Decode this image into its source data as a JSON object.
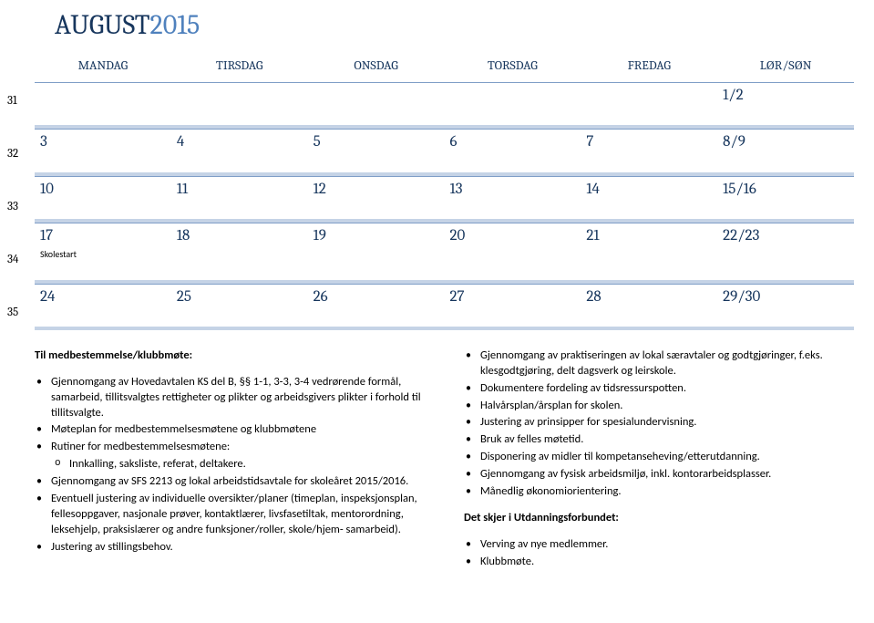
{
  "title": {
    "month": "AUGUST",
    "year": "2015"
  },
  "weekdays": [
    "MANDAG",
    "TIRSDAG",
    "ONSDAG",
    "TORSDAG",
    "FREDAG",
    "LØR/SØN"
  ],
  "weeks": [
    {
      "num": "31",
      "cells": [
        {
          "day": "",
          "note": ""
        },
        {
          "day": "",
          "note": ""
        },
        {
          "day": "",
          "note": ""
        },
        {
          "day": "",
          "note": ""
        },
        {
          "day": "",
          "note": ""
        },
        {
          "day": "1/2",
          "note": ""
        }
      ]
    },
    {
      "num": "32",
      "cells": [
        {
          "day": "3",
          "note": ""
        },
        {
          "day": "4",
          "note": ""
        },
        {
          "day": "5",
          "note": ""
        },
        {
          "day": "6",
          "note": ""
        },
        {
          "day": "7",
          "note": ""
        },
        {
          "day": "8/9",
          "note": ""
        }
      ]
    },
    {
      "num": "33",
      "cells": [
        {
          "day": "10",
          "note": ""
        },
        {
          "day": "11",
          "note": ""
        },
        {
          "day": "12",
          "note": ""
        },
        {
          "day": "13",
          "note": ""
        },
        {
          "day": "14",
          "note": ""
        },
        {
          "day": "15/16",
          "note": ""
        }
      ]
    },
    {
      "num": "34",
      "cells": [
        {
          "day": "17",
          "note": "Skolestart"
        },
        {
          "day": "18",
          "note": ""
        },
        {
          "day": "19",
          "note": ""
        },
        {
          "day": "20",
          "note": ""
        },
        {
          "day": "21",
          "note": ""
        },
        {
          "day": "22/23",
          "note": ""
        }
      ]
    },
    {
      "num": "35",
      "cells": [
        {
          "day": "24",
          "note": ""
        },
        {
          "day": "25",
          "note": ""
        },
        {
          "day": "26",
          "note": ""
        },
        {
          "day": "27",
          "note": ""
        },
        {
          "day": "28",
          "note": ""
        },
        {
          "day": "29/30",
          "note": ""
        }
      ]
    }
  ],
  "left": {
    "heading": "Til medbestemmelse/klubbmøte:",
    "items": [
      {
        "text": "Gjennomgang av Hovedavtalen KS del B, §§ 1-1, 3-3, 3-4 vedrørende formål, samarbeid, tillitsvalgtes rettigheter og plikter og arbeidsgivers plikter i forhold til tillitsvalgte."
      },
      {
        "text": "Møteplan for medbestemmelsesmøtene og klubbmøtene"
      },
      {
        "text": "Rutiner for medbestemmelsesmøtene:",
        "sub": [
          "Innkalling, saksliste, referat, deltakere."
        ]
      },
      {
        "text": "Gjennomgang av SFS 2213 og lokal arbeidstidsavtale for skoleåret 2015/2016."
      },
      {
        "text": "Eventuell justering av individuelle oversikter/planer (timeplan, inspeksjonsplan, fellesoppgaver, nasjonale prøver, kontaktlærer, livsfasetiltak, mentorordning, leksehjelp, praksislærer og andre funksjoner/roller, skole/hjem- samarbeid)."
      },
      {
        "text": "Justering av stillingsbehov."
      }
    ]
  },
  "right": {
    "items": [
      "Gjennomgang av praktiseringen av lokal særavtaler og godtgjøringer, f.eks. klesgodtgjøring, delt dagsverk og leirskole.",
      "Dokumentere fordeling av tidsressurspotten.",
      "Halvårsplan/årsplan for skolen.",
      "Justering av prinsipper for spesialundervisning.",
      "Bruk av felles møtetid.",
      "Disponering av midler til kompetanseheving/etterutdanning.",
      "Gjennomgang av fysisk arbeidsmiljø, inkl. kontorarbeidsplasser.",
      "Månedlig økonomiorientering."
    ],
    "heading2": "Det skjer i Utdanningsforbundet:",
    "items2": [
      "Verving av nye medlemmer.",
      "Klubbmøte."
    ]
  },
  "colors": {
    "title_dark": "#17365d",
    "title_light": "#4f81bd",
    "cell_top_border": "#7f9ec7",
    "cell_bottom_border": "#c5d3e6"
  }
}
